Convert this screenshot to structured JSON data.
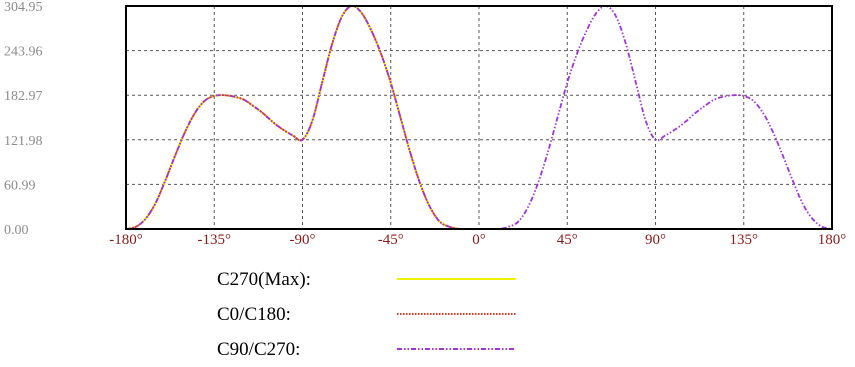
{
  "chart_data": {
    "type": "line",
    "title": "",
    "xlabel": "",
    "ylabel": "",
    "xlim": [
      -180,
      180
    ],
    "ylim": [
      0,
      304.95
    ],
    "grid": true,
    "legend_position": "bottom-center",
    "x_ticks": [
      -180,
      -135,
      -90,
      -45,
      0,
      45,
      90,
      135,
      180
    ],
    "x_tick_labels": [
      "-180°",
      "-135°",
      "-90°",
      "-45°",
      "0°",
      "45°",
      "90°",
      "135°",
      "180°"
    ],
    "y_ticks": [
      0,
      60.99,
      121.98,
      182.97,
      243.96,
      304.95
    ],
    "y_tick_labels": [
      "0.00",
      "60.99",
      "121.98",
      "182.97",
      "243.96",
      "304.95"
    ],
    "series": [
      {
        "name": "C270(Max):",
        "color": "#f2f200",
        "style": "solid",
        "x": [
          -180,
          -175,
          -170,
          -165,
          -160,
          -155,
          -150,
          -145,
          -140,
          -135,
          -130,
          -125,
          -120,
          -115,
          -110,
          -105,
          -100,
          -95,
          -90,
          -85,
          -80,
          -75,
          -70,
          -65,
          -60,
          -55,
          -50,
          -45,
          -40,
          -35,
          -30,
          -25,
          -20,
          -15,
          -10,
          -5,
          0
        ],
        "y": [
          0,
          3,
          14,
          35,
          66,
          100,
          132,
          158,
          175,
          182,
          183,
          181,
          177,
          168,
          158,
          146,
          136,
          128,
          122,
          148,
          200,
          252,
          290,
          305,
          296,
          272,
          240,
          200,
          152,
          104,
          62,
          30,
          10,
          3,
          0,
          0,
          0
        ]
      },
      {
        "name": "C0/C180:",
        "color": "#e0301e",
        "style": "dotted",
        "x": [
          -180,
          -175,
          -170,
          -165,
          -160,
          -155,
          -150,
          -145,
          -140,
          -135,
          -130,
          -125,
          -120,
          -115,
          -110,
          -105,
          -100,
          -95,
          -90,
          -85,
          -80,
          -75,
          -70,
          -65,
          -60,
          -55,
          -50,
          -45,
          -40,
          -35,
          -30,
          -25,
          -20,
          -15,
          -10,
          -5,
          0
        ],
        "y": [
          0,
          3,
          14,
          35,
          66,
          100,
          132,
          158,
          175,
          182,
          183,
          181,
          177,
          168,
          158,
          146,
          136,
          128,
          122,
          148,
          200,
          252,
          290,
          305,
          296,
          272,
          240,
          200,
          152,
          104,
          62,
          30,
          10,
          3,
          0,
          0,
          0
        ]
      },
      {
        "name": "C90/C270:",
        "color": "#a033d9",
        "style": "dash-dot-dot",
        "x": [
          -180,
          -175,
          -170,
          -165,
          -160,
          -155,
          -150,
          -145,
          -140,
          -135,
          -130,
          -125,
          -120,
          -115,
          -110,
          -105,
          -100,
          -95,
          -90,
          -85,
          -80,
          -75,
          -70,
          -65,
          -60,
          -55,
          -50,
          -45,
          -40,
          -35,
          -30,
          -25,
          -20,
          -15,
          -10,
          -5,
          0,
          5,
          10,
          15,
          20,
          25,
          30,
          35,
          40,
          45,
          50,
          55,
          60,
          65,
          70,
          75,
          80,
          85,
          90,
          95,
          100,
          105,
          110,
          115,
          120,
          125,
          130,
          135,
          140,
          145,
          150,
          155,
          160,
          165,
          170,
          175,
          180
        ],
        "y": [
          0,
          3,
          14,
          35,
          66,
          100,
          132,
          158,
          175,
          182,
          183,
          181,
          177,
          168,
          158,
          146,
          136,
          128,
          122,
          148,
          200,
          252,
          290,
          305,
          296,
          272,
          240,
          200,
          152,
          104,
          62,
          30,
          10,
          3,
          0,
          0,
          0,
          0,
          0,
          3,
          10,
          30,
          62,
          104,
          152,
          200,
          240,
          272,
          296,
          305,
          290,
          252,
          200,
          148,
          122,
          128,
          136,
          146,
          158,
          168,
          177,
          181,
          183,
          182,
          175,
          158,
          132,
          100,
          66,
          35,
          14,
          3,
          0
        ]
      }
    ]
  }
}
